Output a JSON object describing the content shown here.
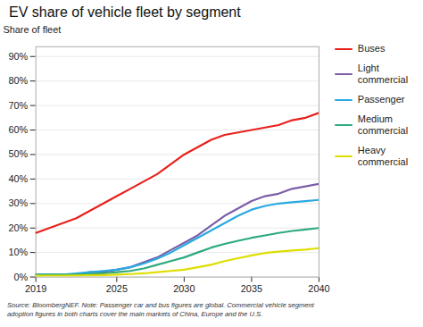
{
  "chart_data": {
    "type": "line",
    "title": "EV share of vehicle fleet by segment",
    "ylabel": "Share of fleet",
    "caption": "Source: BloombergNEF. Note: Passenger car and bus figures are global. Commercial vehicle segment\nadoption figures in both charts cover the main markets of China, Europe and the U.S.",
    "x": [
      2019,
      2020,
      2021,
      2022,
      2023,
      2024,
      2025,
      2026,
      2027,
      2028,
      2029,
      2030,
      2031,
      2032,
      2033,
      2034,
      2035,
      2036,
      2037,
      2038,
      2039,
      2040
    ],
    "series": [
      {
        "name": "Buses",
        "color": "#e8211d",
        "values": [
          0.18,
          0.2,
          0.22,
          0.24,
          0.27,
          0.3,
          0.33,
          0.36,
          0.39,
          0.42,
          0.46,
          0.5,
          0.53,
          0.56,
          0.58,
          0.59,
          0.6,
          0.61,
          0.62,
          0.64,
          0.65,
          0.67
        ]
      },
      {
        "name": "Light\ncommercial",
        "color": "#7b5ea7",
        "values": [
          0.01,
          0.01,
          0.01,
          0.01,
          0.02,
          0.02,
          0.03,
          0.04,
          0.06,
          0.08,
          0.11,
          0.14,
          0.17,
          0.21,
          0.25,
          0.28,
          0.31,
          0.33,
          0.34,
          0.36,
          0.37,
          0.38
        ]
      },
      {
        "name": "Passenger",
        "color": "#29aae1",
        "values": [
          0.01,
          0.01,
          0.01,
          0.015,
          0.02,
          0.025,
          0.03,
          0.04,
          0.055,
          0.075,
          0.1,
          0.13,
          0.16,
          0.19,
          0.22,
          0.25,
          0.275,
          0.29,
          0.3,
          0.305,
          0.31,
          0.315
        ]
      },
      {
        "name": "Medium\ncommercial",
        "color": "#2eaa7e",
        "values": [
          0.01,
          0.01,
          0.01,
          0.01,
          0.012,
          0.015,
          0.02,
          0.025,
          0.035,
          0.05,
          0.065,
          0.08,
          0.1,
          0.12,
          0.135,
          0.148,
          0.16,
          0.17,
          0.18,
          0.188,
          0.194,
          0.2
        ]
      },
      {
        "name": "Heavy\ncommercial",
        "color": "#dede00",
        "values": [
          0.005,
          0.005,
          0.005,
          0.006,
          0.007,
          0.008,
          0.01,
          0.012,
          0.015,
          0.02,
          0.025,
          0.03,
          0.04,
          0.05,
          0.065,
          0.077,
          0.088,
          0.098,
          0.104,
          0.108,
          0.112,
          0.118
        ]
      }
    ],
    "xlim": [
      2019,
      2040
    ],
    "xticks": [
      2019,
      2025,
      2030,
      2035,
      2040
    ],
    "ylim": [
      0,
      0.94
    ],
    "yticks": [
      {
        "value": 0.0,
        "label": "0%"
      },
      {
        "value": 0.1,
        "label": "10%"
      },
      {
        "value": 0.2,
        "label": "20%"
      },
      {
        "value": 0.3,
        "label": "30%"
      },
      {
        "value": 0.4,
        "label": "40%"
      },
      {
        "value": 0.5,
        "label": "50%"
      },
      {
        "value": 0.6,
        "label": "60%"
      },
      {
        "value": 0.7,
        "label": "70%"
      },
      {
        "value": 0.8,
        "label": "80%"
      },
      {
        "value": 0.9,
        "label": "90%"
      }
    ],
    "grid": true,
    "legend": "right"
  }
}
